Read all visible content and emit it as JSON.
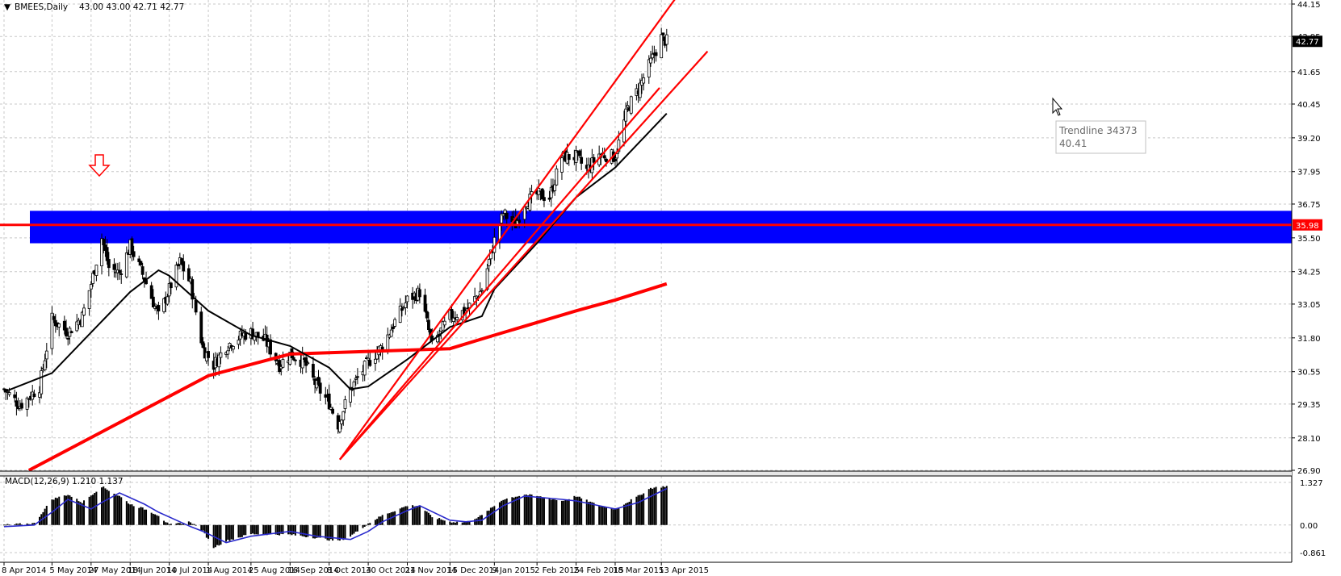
{
  "header": {
    "collapse_glyph": "▼",
    "title": "BMEES,Daily",
    "ohlc": "43.00 43.00 42.71 42.77"
  },
  "macd_header": "MACD(12,26,9) 1.210 1.137",
  "tooltip": {
    "title": "Trendline 34373",
    "value": "40.41"
  },
  "icons": {
    "arrow": "down-arrow-icon",
    "cursor": "mouse-pointer-icon"
  },
  "colors": {
    "candles": "#000000",
    "zone": "#0000ff",
    "lines": "#ff0000",
    "ma_fast": "#000000",
    "macd_signal": "#2a2acc",
    "tag_bg": "#ff0000",
    "current_tag_bg": "#000000"
  },
  "chart_data": [
    {
      "type": "candlestick",
      "symbol": "BMEES",
      "timeframe": "Daily",
      "ylim": [
        26.9,
        44.15
      ],
      "y_ticks": [
        "44.15",
        "42.95",
        "41.65",
        "40.45",
        "39.20",
        "37.95",
        "36.75",
        "35.50",
        "34.25",
        "33.05",
        "31.80",
        "30.55",
        "29.35",
        "28.10",
        "26.90"
      ],
      "x_ticks": [
        "8 Apr 2014",
        "5 May 2014",
        "27 May 2014",
        "18 Jun 2014",
        "10 Jul 2014",
        "1 Aug 2014",
        "25 Aug 2014",
        "16 Sep 2014",
        "8 Oct 2014",
        "30 Oct 2014",
        "21 Nov 2014",
        "15 Dec 2014",
        "9 Jan 2015",
        "2 Feb 2015",
        "24 Feb 2015",
        "18 Mar 2015",
        "13 Apr 2015"
      ],
      "price_tags": [
        {
          "label": "42.77",
          "value": 42.77
        },
        {
          "label": "35.98",
          "value": 35.98
        }
      ],
      "close_path": [
        [
          "8 Apr 2014",
          29.9
        ],
        [
          "17 Apr 2014",
          29.3
        ],
        [
          "28 Apr 2014",
          30.0
        ],
        [
          "5 May 2014",
          32.5
        ],
        [
          "14 May 2014",
          32.0
        ],
        [
          "22 May 2014",
          32.6
        ],
        [
          "27 May 2014",
          33.8
        ],
        [
          "2 Jun 2014",
          35.5
        ],
        [
          "6 Jun 2014",
          34.4
        ],
        [
          "12 Jun 2014",
          34.2
        ],
        [
          "18 Jun 2014",
          35.2
        ],
        [
          "26 Jun 2014",
          34.0
        ],
        [
          "4 Jul 2014",
          32.6
        ],
        [
          "10 Jul 2014",
          33.6
        ],
        [
          "16 Jul 2014",
          34.6
        ],
        [
          "22 Jul 2014",
          33.8
        ],
        [
          "29 Jul 2014",
          31.4
        ],
        [
          "4 Aug 2014",
          30.8
        ],
        [
          "11 Aug 2014",
          31.5
        ],
        [
          "20 Aug 2014",
          31.9
        ],
        [
          "25 Aug 2014",
          32.0
        ],
        [
          "2 Sep 2014",
          31.7
        ],
        [
          "10 Sep 2014",
          30.8
        ],
        [
          "16 Sep 2014",
          31.2
        ],
        [
          "24 Sep 2014",
          30.9
        ],
        [
          "1 Oct 2014",
          30.0
        ],
        [
          "8 Oct 2014",
          29.4
        ],
        [
          "13 Oct 2014",
          28.6
        ],
        [
          "20 Oct 2014",
          29.9
        ],
        [
          "30 Oct 2014",
          30.9
        ],
        [
          "7 Nov 2014",
          31.5
        ],
        [
          "14 Nov 2014",
          32.4
        ],
        [
          "21 Nov 2014",
          33.2
        ],
        [
          "28 Nov 2014",
          33.5
        ],
        [
          "5 Dec 2014",
          31.5
        ],
        [
          "15 Dec 2014",
          32.6
        ],
        [
          "24 Dec 2014",
          32.8
        ],
        [
          "2 Jan 2015",
          33.6
        ],
        [
          "9 Jan 2015",
          35.4
        ],
        [
          "14 Jan 2015",
          36.4
        ],
        [
          "21 Jan 2015",
          36.0
        ],
        [
          "26 Jan 2015",
          36.8
        ],
        [
          "2 Feb 2015",
          37.1
        ],
        [
          "9 Feb 2015",
          37.0
        ],
        [
          "16 Feb 2015",
          38.5
        ],
        [
          "24 Feb 2015",
          38.5
        ],
        [
          "2 Mar 2015",
          38.0
        ],
        [
          "9 Mar 2015",
          38.6
        ],
        [
          "18 Mar 2015",
          38.5
        ],
        [
          "25 Mar 2015",
          40.3
        ],
        [
          "31 Mar 2015",
          41.0
        ],
        [
          "7 Apr 2015",
          42.0
        ],
        [
          "13 Apr 2015",
          42.9
        ],
        [
          "16 Apr 2015",
          42.77
        ]
      ],
      "overlays": {
        "resistance_zone": [
          35.3,
          36.5
        ],
        "horizontal_line": 35.98,
        "moving_average_fast": [
          [
            "8 Apr 2014",
            29.8
          ],
          [
            "5 May 2014",
            30.5
          ],
          [
            "27 May 2014",
            32.0
          ],
          [
            "18 Jun 2014",
            33.5
          ],
          [
            "4 Jul 2014",
            34.3
          ],
          [
            "10 Jul 2014",
            34.1
          ],
          [
            "1 Aug 2014",
            32.8
          ],
          [
            "25 Aug 2014",
            31.9
          ],
          [
            "16 Sep 2014",
            31.5
          ],
          [
            "8 Oct 2014",
            30.7
          ],
          [
            "20 Oct 2014",
            29.9
          ],
          [
            "30 Oct 2014",
            30.0
          ],
          [
            "21 Nov 2014",
            31.0
          ],
          [
            "15 Dec 2014",
            32.2
          ],
          [
            "2 Jan 2015",
            32.6
          ],
          [
            "9 Jan 2015",
            33.6
          ],
          [
            "2 Feb 2015",
            35.3
          ],
          [
            "24 Feb 2015",
            37.0
          ],
          [
            "18 Mar 2015",
            38.1
          ],
          [
            "16 Apr 2015",
            40.1
          ]
        ],
        "moving_average_slow": [
          [
            "22 Apr 2014",
            26.9
          ],
          [
            "1 Aug 2014",
            30.4
          ],
          [
            "16 Sep 2014",
            31.2
          ],
          [
            "30 Oct 2014",
            31.3
          ],
          [
            "15 Dec 2014",
            31.4
          ],
          [
            "9 Jan 2015",
            31.9
          ],
          [
            "24 Feb 2015",
            32.8
          ],
          [
            "18 Mar 2015",
            33.2
          ],
          [
            "16 Apr 2015",
            33.8
          ]
        ],
        "trendlines": [
          {
            "from": [
              "14 Oct 2014",
              27.3
            ],
            "to": [
              "12 Apr 2015",
              41.05
            ]
          },
          {
            "from": [
              "14 Oct 2014",
              27.3
            ],
            "to": [
              "22 Apr 2015",
              44.45
            ]
          },
          {
            "from": [
              "14 Oct 2014",
              27.3
            ],
            "to": [
              "9 May 2015",
              42.4
            ]
          }
        ]
      }
    },
    {
      "type": "bar",
      "name": "MACD(12,26,9)",
      "main": 1.21,
      "signal": 1.137,
      "ylim": [
        -0.861,
        1.327
      ],
      "y_ticks": [
        "1.327",
        "0.00",
        "-0.861"
      ],
      "histogram_path": [
        [
          "8 Apr 2014",
          0.0
        ],
        [
          "25 Apr 2014",
          0.05
        ],
        [
          "5 May 2014",
          0.8
        ],
        [
          "14 May 2014",
          0.95
        ],
        [
          "22 May 2014",
          0.7
        ],
        [
          "2 Jun 2014",
          1.2
        ],
        [
          "12 Jun 2014",
          0.9
        ],
        [
          "18 Jun 2014",
          0.65
        ],
        [
          "26 Jun 2014",
          0.5
        ],
        [
          "4 Jul 2014",
          0.3
        ],
        [
          "10 Jul 2014",
          0.0
        ],
        [
          "22 Jul 2014",
          0.1
        ],
        [
          "29 Jul 2014",
          -0.2
        ],
        [
          "4 Aug 2014",
          -0.7
        ],
        [
          "11 Aug 2014",
          -0.5
        ],
        [
          "25 Aug 2014",
          -0.28
        ],
        [
          "16 Sep 2014",
          -0.3
        ],
        [
          "1 Oct 2014",
          -0.4
        ],
        [
          "13 Oct 2014",
          -0.5
        ],
        [
          "20 Oct 2014",
          -0.35
        ],
        [
          "30 Oct 2014",
          0.05
        ],
        [
          "7 Nov 2014",
          0.3
        ],
        [
          "21 Nov 2014",
          0.6
        ],
        [
          "28 Nov 2014",
          0.6
        ],
        [
          "5 Dec 2014",
          0.25
        ],
        [
          "15 Dec 2014",
          0.1
        ],
        [
          "24 Dec 2014",
          0.08
        ],
        [
          "2 Jan 2015",
          0.3
        ],
        [
          "14 Jan 2015",
          0.8
        ],
        [
          "26 Jan 2015",
          0.95
        ],
        [
          "2 Feb 2015",
          0.9
        ],
        [
          "16 Feb 2015",
          0.75
        ],
        [
          "24 Feb 2015",
          0.9
        ],
        [
          "9 Mar 2015",
          0.6
        ],
        [
          "18 Mar 2015",
          0.5
        ],
        [
          "31 Mar 2015",
          0.9
        ],
        [
          "7 Apr 2015",
          1.15
        ],
        [
          "16 Apr 2015",
          1.21
        ]
      ],
      "signal_path": [
        [
          "8 Apr 2014",
          -0.05
        ],
        [
          "25 Apr 2014",
          0.0
        ],
        [
          "5 May 2014",
          0.4
        ],
        [
          "14 May 2014",
          0.8
        ],
        [
          "27 May 2014",
          0.5
        ],
        [
          "2 Jun 2014",
          0.7
        ],
        [
          "12 Jun 2014",
          1.0
        ],
        [
          "26 Jun 2014",
          0.65
        ],
        [
          "4 Jul 2014",
          0.4
        ],
        [
          "22 Jul 2014",
          -0.05
        ],
        [
          "29 Jul 2014",
          -0.2
        ],
        [
          "11 Aug 2014",
          -0.55
        ],
        [
          "25 Aug 2014",
          -0.35
        ],
        [
          "16 Sep 2014",
          -0.2
        ],
        [
          "1 Oct 2014",
          -0.35
        ],
        [
          "20 Oct 2014",
          -0.45
        ],
        [
          "30 Oct 2014",
          -0.2
        ],
        [
          "7 Nov 2014",
          0.1
        ],
        [
          "21 Nov 2014",
          0.45
        ],
        [
          "28 Nov 2014",
          0.6
        ],
        [
          "15 Dec 2014",
          0.15
        ],
        [
          "24 Dec 2014",
          0.1
        ],
        [
          "2 Jan 2015",
          0.15
        ],
        [
          "14 Jan 2015",
          0.6
        ],
        [
          "26 Jan 2015",
          0.9
        ],
        [
          "16 Feb 2015",
          0.8
        ],
        [
          "24 Feb 2015",
          0.75
        ],
        [
          "9 Mar 2015",
          0.6
        ],
        [
          "18 Mar 2015",
          0.5
        ],
        [
          "31 Mar 2015",
          0.7
        ],
        [
          "16 Apr 2015",
          1.137
        ]
      ]
    }
  ]
}
